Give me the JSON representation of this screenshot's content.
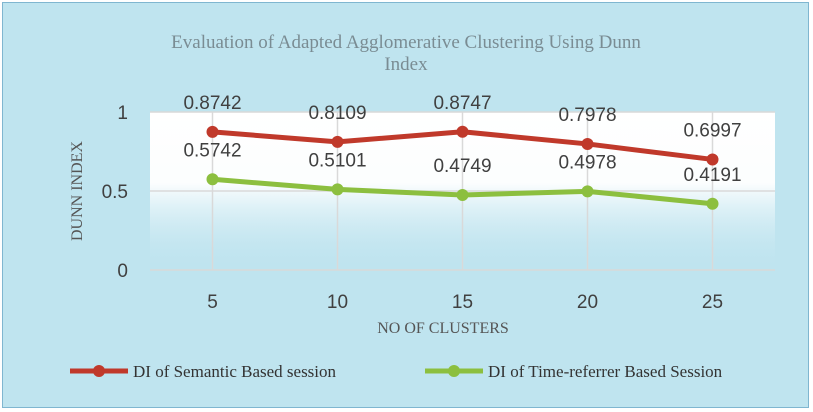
{
  "chart_data": {
    "type": "line",
    "title": "Evaluation of Adapted Agglomerative Clustering Using Dunn Index",
    "title_line1": "Evaluation of Adapted Agglomerative Clustering Using Dunn",
    "title_line2": "Index",
    "xlabel": "NO OF CLUSTERS",
    "ylabel": "DUNN INDEX",
    "categories": [
      "5",
      "10",
      "15",
      "20",
      "25"
    ],
    "yticks": [
      "0",
      "0.5",
      "1"
    ],
    "ylim": [
      0,
      1
    ],
    "grid": true,
    "legend_position": "bottom",
    "series": [
      {
        "name": "DI of Semantic Based session",
        "values": [
          0.8742,
          0.8109,
          0.8747,
          0.7978,
          0.6997
        ],
        "labels": [
          "0.8742",
          "0.8109",
          "0.8747",
          "0.7978",
          "0.6997"
        ],
        "color": "#c0392b"
      },
      {
        "name": "DI of Time-referrer Based Session",
        "values": [
          0.5742,
          0.5101,
          0.4749,
          0.4978,
          0.4191
        ],
        "labels": [
          "0.5742",
          "0.5101",
          "0.4749",
          "0.4978",
          "0.4191"
        ],
        "color": "#8cbf3f"
      }
    ]
  },
  "colors": {
    "background": "#bfe4ef",
    "plot_gradient_top": "#ffffff",
    "plot_gradient_bottom": "#bfe4ef",
    "title": "#7a8c93"
  }
}
